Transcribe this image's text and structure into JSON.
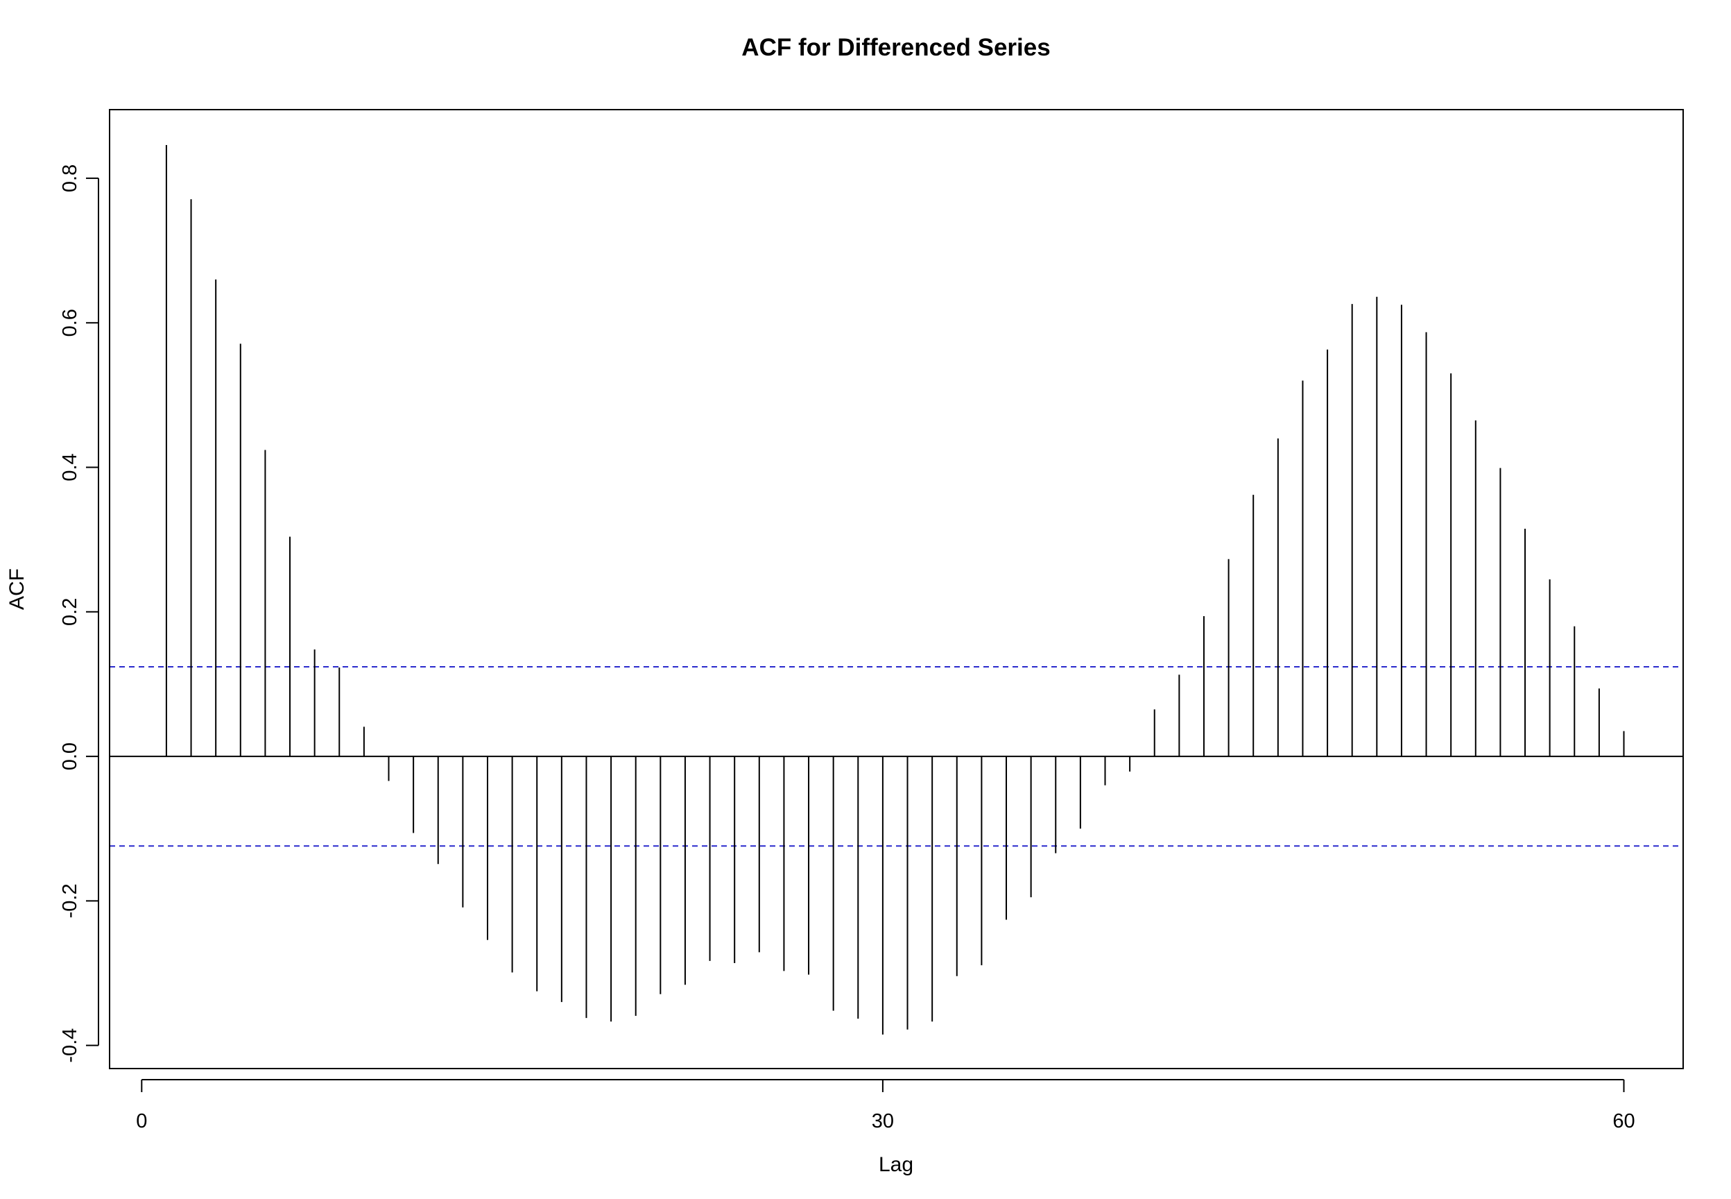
{
  "chart_data": {
    "type": "bar",
    "title": "ACF for Differenced Series",
    "xlabel": "Lag",
    "ylabel": "ACF",
    "xlim": [
      -1.3,
      62.4
    ],
    "ylim": [
      -0.432,
      0.895
    ],
    "x_ticks": [
      0,
      30,
      60
    ],
    "x_tick_labels": [
      "0",
      "30",
      "60"
    ],
    "y_ticks": [
      -0.4,
      -0.2,
      0.0,
      0.2,
      0.4,
      0.6,
      0.8
    ],
    "y_tick_labels": [
      "-0.4",
      "-0.2",
      "0.0",
      "0.2",
      "0.4",
      "0.6",
      "0.8"
    ],
    "grid": false,
    "zero_line": 0,
    "confidence_band": {
      "upper": 0.124,
      "lower": -0.124,
      "color": "#2a2acd",
      "style": "dashed"
    },
    "series": [
      {
        "lags": [
          1,
          2,
          3,
          4,
          5,
          6,
          7,
          8,
          9,
          10,
          11,
          12,
          13,
          14,
          15,
          16,
          17,
          18,
          19,
          20,
          21,
          22,
          23,
          24,
          25,
          26,
          27,
          28,
          29,
          30,
          31,
          32,
          33,
          34,
          35,
          36,
          37,
          38,
          39,
          40,
          41,
          42,
          43,
          44,
          45,
          46,
          47,
          48,
          49,
          50,
          51,
          52,
          53,
          54,
          55,
          56,
          57,
          58,
          59,
          60
        ],
        "values": [
          0.846,
          0.771,
          0.66,
          0.571,
          0.424,
          0.304,
          0.148,
          0.123,
          0.041,
          -0.034,
          -0.106,
          -0.149,
          -0.209,
          -0.254,
          -0.299,
          -0.325,
          -0.34,
          -0.362,
          -0.367,
          -0.359,
          -0.329,
          -0.316,
          -0.283,
          -0.286,
          -0.271,
          -0.297,
          -0.302,
          -0.352,
          -0.363,
          -0.385,
          -0.378,
          -0.367,
          -0.304,
          -0.289,
          -0.226,
          -0.195,
          -0.134,
          -0.1,
          -0.04,
          -0.021,
          0.065,
          0.113,
          0.194,
          0.273,
          0.362,
          0.44,
          0.52,
          0.563,
          0.626,
          0.636,
          0.625,
          0.587,
          0.53,
          0.465,
          0.399,
          0.315,
          0.245,
          0.18,
          0.094,
          0.035
        ]
      }
    ]
  }
}
